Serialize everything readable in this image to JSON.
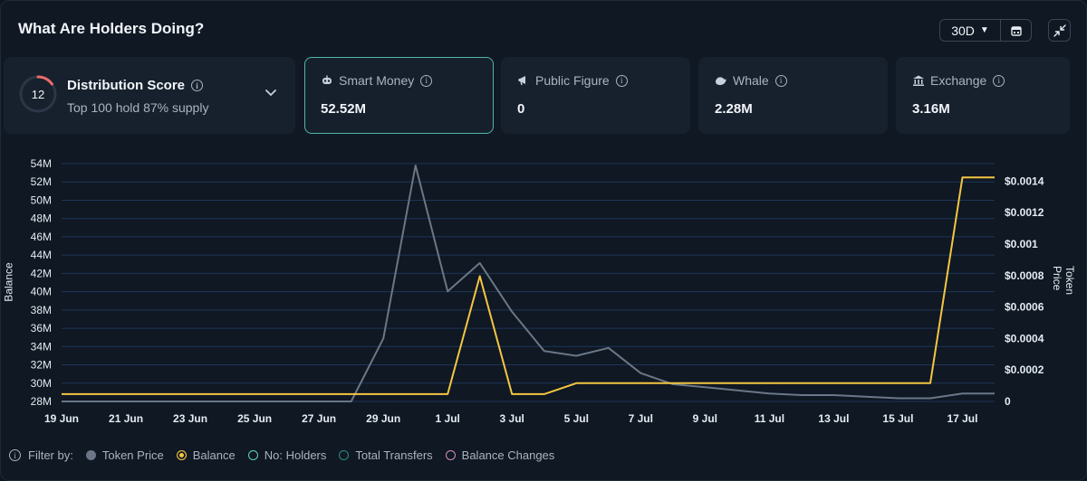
{
  "header": {
    "title": "What Are Holders Doing?",
    "range": "30D"
  },
  "distribution": {
    "score": "12",
    "title": "Distribution Score",
    "subtitle": "Top 100 hold 87% supply"
  },
  "cards": [
    {
      "label": "Smart Money",
      "value": "52.52M",
      "icon": "robot-icon",
      "active": true
    },
    {
      "label": "Public Figure",
      "value": "0",
      "icon": "megaphone-icon",
      "active": false
    },
    {
      "label": "Whale",
      "value": "2.28M",
      "icon": "whale-icon",
      "active": false
    },
    {
      "label": "Exchange",
      "value": "3.16M",
      "icon": "bank-icon",
      "active": false
    }
  ],
  "filters": {
    "label": "Filter by:",
    "items": [
      {
        "label": "Token Price",
        "color": "#6b7787",
        "style": "filled"
      },
      {
        "label": "Balance",
        "color": "#f5c542",
        "style": "ring-filled"
      },
      {
        "label": "No: Holders",
        "color": "#5fd3c4",
        "style": "outline"
      },
      {
        "label": "Total Transfers",
        "color": "#2e8f86",
        "style": "outline"
      },
      {
        "label": "Balance Changes",
        "color": "#d98bc7",
        "style": "outline"
      }
    ]
  },
  "chart_data": {
    "type": "line",
    "ylabel": "Balance",
    "ylabel_right": "Token Price",
    "x_ticks": [
      "19 Jun",
      "21 Jun",
      "23 Jun",
      "25 Jun",
      "27 Jun",
      "29 Jun",
      "1 Jul",
      "3 Jul",
      "5 Jul",
      "7 Jul",
      "9 Jul",
      "11 Jul",
      "13 Jul",
      "15 Jul",
      "17 Jul"
    ],
    "x": [
      "19 Jun",
      "20 Jun",
      "21 Jun",
      "22 Jun",
      "23 Jun",
      "24 Jun",
      "25 Jun",
      "26 Jun",
      "27 Jun",
      "28 Jun",
      "29 Jun",
      "30 Jun",
      "1 Jul",
      "2 Jul",
      "3 Jul",
      "4 Jul",
      "5 Jul",
      "6 Jul",
      "7 Jul",
      "8 Jul",
      "9 Jul",
      "10 Jul",
      "11 Jul",
      "12 Jul",
      "13 Jul",
      "14 Jul",
      "15 Jul",
      "16 Jul",
      "17 Jul",
      "18 Jul"
    ],
    "y_left_ticks": [
      "28M",
      "30M",
      "32M",
      "34M",
      "36M",
      "38M",
      "40M",
      "42M",
      "44M",
      "46M",
      "48M",
      "50M",
      "52M",
      "54M"
    ],
    "y_left_range": [
      28,
      54
    ],
    "y_right_ticks": [
      "0",
      "$0.0002",
      "$0.0004",
      "$0.0006",
      "$0.0008",
      "$0.001",
      "$0.0012",
      "$0.0014"
    ],
    "y_right_range": [
      0,
      0.0015
    ],
    "series": [
      {
        "name": "Balance",
        "axis": "left",
        "color": "#f5c542",
        "values": [
          28.8,
          28.8,
          28.8,
          28.8,
          28.8,
          28.8,
          28.8,
          28.8,
          28.8,
          28.8,
          28.8,
          28.8,
          28.8,
          41.7,
          28.8,
          28.8,
          30.0,
          30.0,
          30.0,
          30.0,
          30.0,
          30.0,
          30.0,
          30.0,
          30.0,
          30.0,
          30.0,
          30.0,
          52.5,
          52.5
        ]
      },
      {
        "name": "Token Price",
        "axis": "right",
        "color": "#6b7787",
        "values": [
          0.0,
          0.0,
          0.0,
          0.0,
          0.0,
          0.0,
          0.0,
          0.0,
          0.0,
          0.0,
          0.0004,
          0.0015,
          0.0007,
          0.00088,
          0.00057,
          0.00032,
          0.00029,
          0.00034,
          0.00018,
          0.00011,
          9e-05,
          7e-05,
          5e-05,
          4e-05,
          4e-05,
          3e-05,
          2e-05,
          2e-05,
          5e-05,
          5e-05
        ]
      }
    ]
  }
}
